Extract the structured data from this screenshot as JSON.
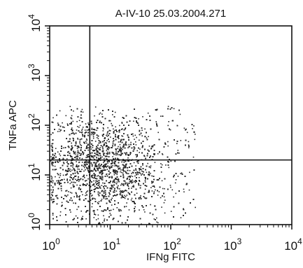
{
  "chart_data": {
    "type": "scatter",
    "title": "A-IV-10 25.03.2004.271",
    "xlabel": "IFNg FITC",
    "ylabel": "TNFa APC",
    "x_scale": "log",
    "y_scale": "log",
    "xlim": [
      1,
      10000
    ],
    "ylim": [
      1,
      10000
    ],
    "grid": false,
    "legend": "none",
    "x_ticks": [
      {
        "value": 1,
        "base": "10",
        "exp": "0"
      },
      {
        "value": 10,
        "base": "10",
        "exp": "1"
      },
      {
        "value": 100,
        "base": "10",
        "exp": "2"
      },
      {
        "value": 1000,
        "base": "10",
        "exp": "3"
      },
      {
        "value": 10000,
        "base": "10",
        "exp": "4"
      }
    ],
    "y_ticks": [
      {
        "value": 1,
        "base": "10",
        "exp": "0"
      },
      {
        "value": 10,
        "base": "10",
        "exp": "1"
      },
      {
        "value": 100,
        "base": "10",
        "exp": "2"
      },
      {
        "value": 1000,
        "base": "10",
        "exp": "3"
      },
      {
        "value": 10000,
        "base": "10",
        "exp": "4"
      }
    ],
    "quadrant_gates": {
      "x": 4.6,
      "y": 20
    },
    "population": {
      "x_range": [
        1,
        250
      ],
      "y_range": [
        1,
        250
      ],
      "dense_region": {
        "x": [
          1,
          60
        ],
        "y": [
          2,
          120
        ]
      },
      "color": "#2a2a2a"
    }
  }
}
